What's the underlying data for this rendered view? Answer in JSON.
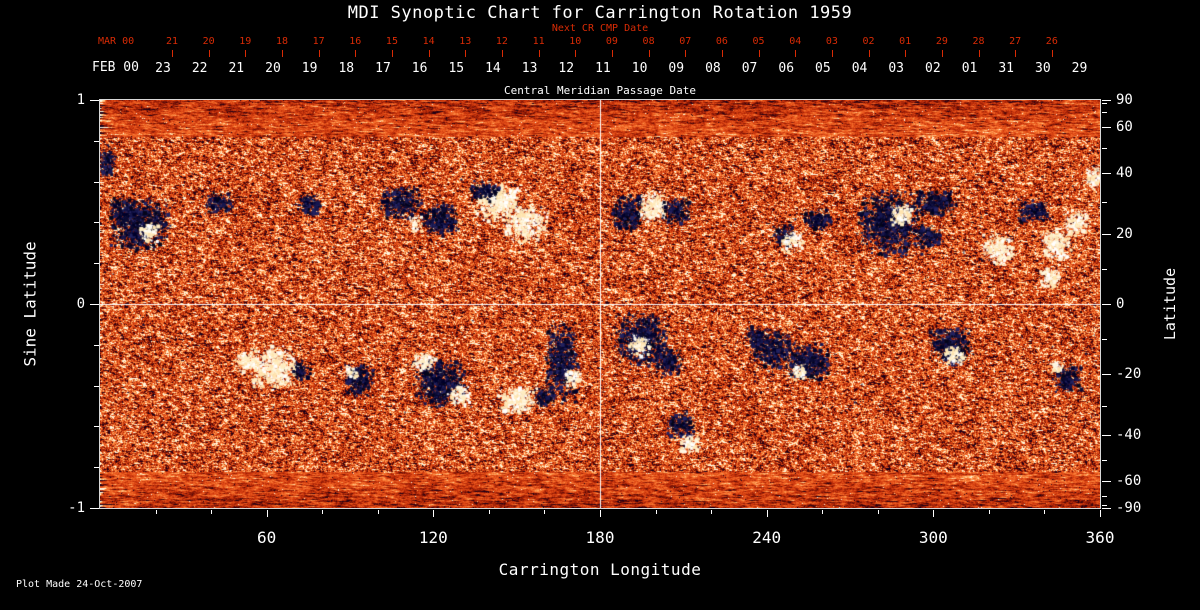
{
  "chart_data": {
    "type": "heatmap",
    "title": "MDI Synoptic Chart for Carrington Rotation 1959",
    "footer": "Plot Made 24-Oct-2007",
    "x_axis": {
      "label": "Carrington Longitude",
      "range": [
        0,
        360
      ],
      "major_ticks": [
        60,
        120,
        180,
        240,
        300,
        360
      ],
      "minor_tick_step": 20
    },
    "y_left": {
      "label": "Sine Latitude",
      "range": [
        -1,
        1
      ],
      "major_ticks": [
        1,
        0,
        -1
      ],
      "minor_ticks": [
        0.8,
        0.6,
        0.4,
        0.2,
        -0.2,
        -0.4,
        -0.6,
        -0.8
      ]
    },
    "y_right": {
      "label": "Latitude",
      "ticks": [
        90,
        60,
        40,
        20,
        0,
        -20,
        -40,
        -60,
        -90
      ],
      "minor_ticks": [
        80,
        70,
        50,
        30,
        10,
        -10,
        -30,
        -50,
        -70,
        -80
      ]
    },
    "top_axis_next_cr": {
      "prefix": "MAR 00",
      "label": "Next CR CMP Date",
      "tick_labels": [
        "21",
        "20",
        "19",
        "18",
        "17",
        "16",
        "15",
        "14",
        "13",
        "12",
        "11",
        "10",
        "09",
        "08",
        "07",
        "06",
        "05",
        "04",
        "03",
        "02",
        "01",
        "29",
        "28",
        "27",
        "26"
      ]
    },
    "top_axis_cmp": {
      "prefix": "FEB 00",
      "label": "Central Meridian Passage Date",
      "tick_labels": [
        "23",
        "22",
        "21",
        "20",
        "19",
        "18",
        "17",
        "16",
        "15",
        "14",
        "13",
        "12",
        "11",
        "10",
        "09",
        "08",
        "07",
        "06",
        "05",
        "04",
        "03",
        "02",
        "01",
        "31",
        "30",
        "29"
      ]
    },
    "crosshair": {
      "lon": 180,
      "sine_latitude": 0
    },
    "colors": {
      "background": "#000000",
      "text": "#ffffff",
      "date_axis_red": "#d92b05",
      "map_base": "#e8501c",
      "negative_polarity": "#10104a",
      "positive_polarity": "#fff7e0"
    },
    "active_regions": [
      {
        "lon": 14,
        "slat": 0.39,
        "w": 16,
        "h": 0.2,
        "pol": "neg"
      },
      {
        "lon": 17,
        "slat": 0.36,
        "w": 5,
        "h": 0.07,
        "pol": "pos"
      },
      {
        "lon": 8,
        "slat": 0.46,
        "w": 8,
        "h": 0.1,
        "pol": "neg"
      },
      {
        "lon": 2,
        "slat": 0.7,
        "w": 5,
        "h": 0.12,
        "pol": "neg"
      },
      {
        "lon": 42,
        "slat": 0.5,
        "w": 8,
        "h": 0.08,
        "pol": "neg"
      },
      {
        "lon": 75,
        "slat": 0.49,
        "w": 7,
        "h": 0.08,
        "pol": "neg"
      },
      {
        "lon": 108,
        "slat": 0.5,
        "w": 12,
        "h": 0.12,
        "pol": "neg"
      },
      {
        "lon": 122,
        "slat": 0.42,
        "w": 10,
        "h": 0.12,
        "pol": "neg"
      },
      {
        "lon": 113,
        "slat": 0.4,
        "w": 4,
        "h": 0.06,
        "pol": "pos"
      },
      {
        "lon": 143,
        "slat": 0.5,
        "w": 12,
        "h": 0.14,
        "pol": "pos"
      },
      {
        "lon": 153,
        "slat": 0.4,
        "w": 12,
        "h": 0.14,
        "pol": "pos"
      },
      {
        "lon": 138,
        "slat": 0.56,
        "w": 8,
        "h": 0.08,
        "pol": "neg"
      },
      {
        "lon": 190,
        "slat": 0.45,
        "w": 9,
        "h": 0.14,
        "pol": "neg"
      },
      {
        "lon": 199,
        "slat": 0.48,
        "w": 8,
        "h": 0.12,
        "pol": "pos"
      },
      {
        "lon": 207,
        "slat": 0.46,
        "w": 8,
        "h": 0.1,
        "pol": "neg"
      },
      {
        "lon": 246,
        "slat": 0.34,
        "w": 6,
        "h": 0.08,
        "pol": "neg"
      },
      {
        "lon": 249,
        "slat": 0.31,
        "w": 6,
        "h": 0.08,
        "pol": "pos"
      },
      {
        "lon": 258,
        "slat": 0.42,
        "w": 8,
        "h": 0.08,
        "pol": "neg"
      },
      {
        "lon": 284,
        "slat": 0.4,
        "w": 18,
        "h": 0.24,
        "pol": "neg"
      },
      {
        "lon": 288,
        "slat": 0.44,
        "w": 6,
        "h": 0.08,
        "pol": "pos"
      },
      {
        "lon": 298,
        "slat": 0.34,
        "w": 8,
        "h": 0.08,
        "pol": "neg"
      },
      {
        "lon": 300,
        "slat": 0.5,
        "w": 12,
        "h": 0.1,
        "pol": "neg"
      },
      {
        "lon": 323,
        "slat": 0.27,
        "w": 9,
        "h": 0.12,
        "pol": "pos"
      },
      {
        "lon": 344,
        "slat": 0.3,
        "w": 8,
        "h": 0.12,
        "pol": "pos"
      },
      {
        "lon": 342,
        "slat": 0.13,
        "w": 6,
        "h": 0.08,
        "pol": "pos"
      },
      {
        "lon": 351,
        "slat": 0.4,
        "w": 7,
        "h": 0.1,
        "pol": "pos"
      },
      {
        "lon": 336,
        "slat": 0.46,
        "w": 9,
        "h": 0.09,
        "pol": "neg"
      },
      {
        "lon": 358,
        "slat": 0.63,
        "w": 5,
        "h": 0.1,
        "pol": "pos"
      },
      {
        "lon": 62,
        "slat": -0.31,
        "w": 13,
        "h": 0.16,
        "pol": "pos"
      },
      {
        "lon": 72,
        "slat": -0.32,
        "w": 5,
        "h": 0.08,
        "pol": "neg"
      },
      {
        "lon": 52,
        "slat": -0.28,
        "w": 6,
        "h": 0.08,
        "pol": "pos"
      },
      {
        "lon": 93,
        "slat": -0.37,
        "w": 8,
        "h": 0.12,
        "pol": "neg"
      },
      {
        "lon": 90,
        "slat": -0.33,
        "w": 4,
        "h": 0.05,
        "pol": "pos"
      },
      {
        "lon": 122,
        "slat": -0.38,
        "w": 14,
        "h": 0.18,
        "pol": "neg"
      },
      {
        "lon": 116,
        "slat": -0.28,
        "w": 6,
        "h": 0.08,
        "pol": "pos"
      },
      {
        "lon": 129,
        "slat": -0.44,
        "w": 6,
        "h": 0.08,
        "pol": "pos"
      },
      {
        "lon": 150,
        "slat": -0.47,
        "w": 11,
        "h": 0.1,
        "pol": "pos"
      },
      {
        "lon": 166,
        "slat": -0.28,
        "w": 9,
        "h": 0.3,
        "pol": "neg"
      },
      {
        "lon": 170,
        "slat": -0.36,
        "w": 5,
        "h": 0.07,
        "pol": "pos"
      },
      {
        "lon": 160,
        "slat": -0.45,
        "w": 6,
        "h": 0.08,
        "pol": "neg"
      },
      {
        "lon": 195,
        "slat": -0.17,
        "w": 15,
        "h": 0.2,
        "pol": "neg"
      },
      {
        "lon": 194,
        "slat": -0.2,
        "w": 6,
        "h": 0.08,
        "pol": "pos"
      },
      {
        "lon": 204,
        "slat": -0.28,
        "w": 8,
        "h": 0.1,
        "pol": "neg"
      },
      {
        "lon": 209,
        "slat": -0.59,
        "w": 8,
        "h": 0.1,
        "pol": "neg"
      },
      {
        "lon": 212,
        "slat": -0.68,
        "w": 6,
        "h": 0.07,
        "pol": "pos"
      },
      {
        "lon": 242,
        "slat": -0.22,
        "w": 12,
        "h": 0.16,
        "pol": "neg"
      },
      {
        "lon": 255,
        "slat": -0.28,
        "w": 12,
        "h": 0.14,
        "pol": "neg"
      },
      {
        "lon": 251,
        "slat": -0.33,
        "w": 5,
        "h": 0.06,
        "pol": "pos"
      },
      {
        "lon": 236,
        "slat": -0.16,
        "w": 6,
        "h": 0.08,
        "pol": "neg"
      },
      {
        "lon": 306,
        "slat": -0.2,
        "w": 12,
        "h": 0.14,
        "pol": "neg"
      },
      {
        "lon": 307,
        "slat": -0.25,
        "w": 6,
        "h": 0.07,
        "pol": "pos"
      },
      {
        "lon": 348,
        "slat": -0.36,
        "w": 8,
        "h": 0.1,
        "pol": "neg"
      },
      {
        "lon": 344,
        "slat": -0.31,
        "w": 4,
        "h": 0.05,
        "pol": "pos"
      }
    ]
  }
}
